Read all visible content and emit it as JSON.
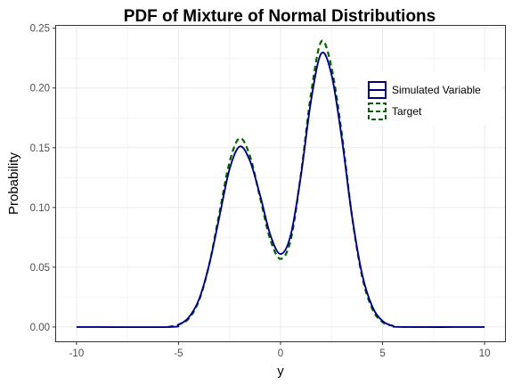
{
  "chart_data": {
    "type": "line",
    "title": "PDF of Mixture of Normal Distributions",
    "xlabel": "y",
    "ylabel": "Probability",
    "xlim": [
      -11,
      11
    ],
    "ylim": [
      -0.012,
      0.252
    ],
    "x_ticks": [
      -10,
      -5,
      0,
      5,
      10
    ],
    "x_tick_labels": [
      "-10",
      "-5",
      "0",
      "5",
      "10"
    ],
    "y_ticks": [
      0.0,
      0.05,
      0.1,
      0.15,
      0.2,
      0.25
    ],
    "y_tick_labels": [
      "0.00",
      "0.05",
      "0.10",
      "0.15",
      "0.20",
      "0.25"
    ],
    "grid": true,
    "legend_position": "top-right",
    "series": [
      {
        "name": "Simulated Variable",
        "color": "#00007f",
        "style": "solid",
        "points": [
          [
            -10,
            0.0
          ],
          [
            -5.5,
            0.0
          ],
          [
            -5,
            0.002
          ],
          [
            -4.5,
            0.008
          ],
          [
            -4,
            0.023
          ],
          [
            -3.5,
            0.052
          ],
          [
            -3,
            0.092
          ],
          [
            -2.5,
            0.132
          ],
          [
            -2,
            0.151
          ],
          [
            -1.5,
            0.139
          ],
          [
            -1,
            0.11
          ],
          [
            -0.5,
            0.077
          ],
          [
            0,
            0.061
          ],
          [
            0.5,
            0.077
          ],
          [
            1,
            0.127
          ],
          [
            1.5,
            0.19
          ],
          [
            2,
            0.229
          ],
          [
            2.5,
            0.211
          ],
          [
            3,
            0.158
          ],
          [
            3.5,
            0.093
          ],
          [
            4,
            0.044
          ],
          [
            4.5,
            0.017
          ],
          [
            5,
            0.005
          ],
          [
            5.5,
            0.001
          ],
          [
            6,
            0.0
          ],
          [
            10,
            0.0
          ]
        ]
      },
      {
        "name": "Target",
        "color": "#006400",
        "style": "dashed",
        "points": [
          [
            -5.5,
            0.0
          ],
          [
            -5,
            0.002
          ],
          [
            -4.5,
            0.007
          ],
          [
            -4,
            0.022
          ],
          [
            -3.5,
            0.052
          ],
          [
            -3,
            0.095
          ],
          [
            -2.5,
            0.138
          ],
          [
            -2,
            0.158
          ],
          [
            -1.5,
            0.143
          ],
          [
            -1,
            0.108
          ],
          [
            -0.5,
            0.073
          ],
          [
            0,
            0.057
          ],
          [
            0.5,
            0.073
          ],
          [
            1,
            0.128
          ],
          [
            1.5,
            0.196
          ],
          [
            2,
            0.239
          ],
          [
            2.5,
            0.217
          ],
          [
            3,
            0.162
          ],
          [
            3.5,
            0.093
          ],
          [
            4,
            0.042
          ],
          [
            4.5,
            0.015
          ],
          [
            5,
            0.004
          ],
          [
            5.5,
            0.001
          ]
        ]
      }
    ]
  }
}
